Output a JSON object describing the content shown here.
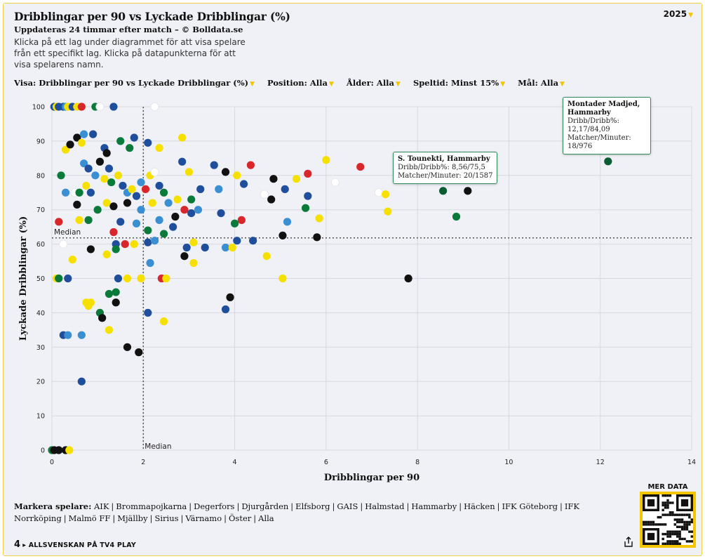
{
  "header": {
    "title": "Dribblingar per 90 vs Lyckade Dribblingar (%)",
    "subtitle": "Uppdateras 24 timmar efter match – © Bolldata.se",
    "instructions": "Klicka på ett lag under diagrammet för att visa spelare från ett specifikt lag. Klicka på datapunkterna för att visa spelarens namn.",
    "year": "2025"
  },
  "filters": [
    {
      "label": "Visa:",
      "value": "Dribblingar per 90 vs Lyckade Dribblingar (%)"
    },
    {
      "label": "Position:",
      "value": "Alla"
    },
    {
      "label": "Ålder:",
      "value": "Alla"
    },
    {
      "label": "Speltid:",
      "value": "Minst 15%"
    },
    {
      "label": "Mål:",
      "value": "Alla"
    }
  ],
  "colors": {
    "black": "#111111",
    "dark_blue": "#1f4f9c",
    "light_blue": "#3a8fd2",
    "yellow": "#f5e000",
    "gold": "#f2c500",
    "green": "#0a7a3a",
    "dark_green": "#0a5c32",
    "red": "#d9262b",
    "white": "#ffffff",
    "accent": "#f2c500"
  },
  "chart_data": {
    "type": "scatter",
    "xlabel": "Dribblingar per 90",
    "ylabel": "Lyckade Dribblingar (%)",
    "xlim": [
      0,
      14
    ],
    "ylim": [
      0,
      100
    ],
    "xticks": [
      0,
      2,
      4,
      6,
      8,
      10,
      12,
      14
    ],
    "yticks": [
      0,
      10,
      20,
      30,
      40,
      50,
      60,
      70,
      80,
      90,
      100
    ],
    "grid": true,
    "median_x": 2.0,
    "median_y": 61.8,
    "median_label_x": "Median",
    "median_label_y": "Median",
    "points": [
      {
        "x": 0.05,
        "y": 100,
        "c": "dark_blue"
      },
      {
        "x": 0.1,
        "y": 100,
        "c": "yellow"
      },
      {
        "x": 0.15,
        "y": 100,
        "c": "dark_blue"
      },
      {
        "x": 0.25,
        "y": 100,
        "c": "dark_blue"
      },
      {
        "x": 0.3,
        "y": 100,
        "c": "light_blue"
      },
      {
        "x": 0.35,
        "y": 100,
        "c": "yellow"
      },
      {
        "x": 0.45,
        "y": 100,
        "c": "dark_blue"
      },
      {
        "x": 0.55,
        "y": 100,
        "c": "yellow"
      },
      {
        "x": 0.65,
        "y": 100,
        "c": "red"
      },
      {
        "x": 0.95,
        "y": 100,
        "c": "green"
      },
      {
        "x": 1.05,
        "y": 100,
        "c": "white"
      },
      {
        "x": 1.35,
        "y": 100,
        "c": "dark_blue"
      },
      {
        "x": 2.25,
        "y": 100,
        "c": "white"
      },
      {
        "x": 0.2,
        "y": 80,
        "c": "green"
      },
      {
        "x": 0.3,
        "y": 87.5,
        "c": "yellow"
      },
      {
        "x": 0.4,
        "y": 89,
        "c": "black"
      },
      {
        "x": 0.55,
        "y": 91,
        "c": "black"
      },
      {
        "x": 0.65,
        "y": 89.5,
        "c": "yellow"
      },
      {
        "x": 0.7,
        "y": 92,
        "c": "light_blue"
      },
      {
        "x": 0.9,
        "y": 92,
        "c": "dark_blue"
      },
      {
        "x": 1.15,
        "y": 88,
        "c": "dark_blue"
      },
      {
        "x": 1.2,
        "y": 86.5,
        "c": "black"
      },
      {
        "x": 1.5,
        "y": 90,
        "c": "green"
      },
      {
        "x": 1.8,
        "y": 91,
        "c": "dark_blue"
      },
      {
        "x": 2.1,
        "y": 89.5,
        "c": "dark_blue"
      },
      {
        "x": 2.35,
        "y": 88,
        "c": "yellow"
      },
      {
        "x": 2.85,
        "y": 91,
        "c": "yellow"
      },
      {
        "x": 1.7,
        "y": 88,
        "c": "green"
      },
      {
        "x": 0.3,
        "y": 75,
        "c": "light_blue"
      },
      {
        "x": 0.5,
        "y": 75,
        "c": "white"
      },
      {
        "x": 0.55,
        "y": 71.5,
        "c": "black"
      },
      {
        "x": 0.6,
        "y": 75,
        "c": "green"
      },
      {
        "x": 0.75,
        "y": 77,
        "c": "yellow"
      },
      {
        "x": 0.85,
        "y": 75,
        "c": "dark_blue"
      },
      {
        "x": 0.7,
        "y": 83.5,
        "c": "light_blue"
      },
      {
        "x": 0.8,
        "y": 82,
        "c": "dark_blue"
      },
      {
        "x": 0.95,
        "y": 80,
        "c": "light_blue"
      },
      {
        "x": 1.05,
        "y": 84,
        "c": "black"
      },
      {
        "x": 1.15,
        "y": 79,
        "c": "yellow"
      },
      {
        "x": 1.25,
        "y": 82,
        "c": "dark_blue"
      },
      {
        "x": 1.3,
        "y": 78,
        "c": "green"
      },
      {
        "x": 1.45,
        "y": 80,
        "c": "yellow"
      },
      {
        "x": 1.55,
        "y": 77,
        "c": "dark_blue"
      },
      {
        "x": 1.65,
        "y": 75,
        "c": "light_blue"
      },
      {
        "x": 1.75,
        "y": 76,
        "c": "yellow"
      },
      {
        "x": 1.85,
        "y": 74,
        "c": "dark_blue"
      },
      {
        "x": 1.95,
        "y": 78,
        "c": "light_blue"
      },
      {
        "x": 2.05,
        "y": 76,
        "c": "red"
      },
      {
        "x": 2.15,
        "y": 80,
        "c": "yellow"
      },
      {
        "x": 2.25,
        "y": 81,
        "c": "white"
      },
      {
        "x": 2.35,
        "y": 77,
        "c": "dark_blue"
      },
      {
        "x": 2.45,
        "y": 75,
        "c": "green"
      },
      {
        "x": 2.55,
        "y": 72,
        "c": "light_blue"
      },
      {
        "x": 2.75,
        "y": 73,
        "c": "yellow"
      },
      {
        "x": 2.85,
        "y": 84,
        "c": "dark_blue"
      },
      {
        "x": 3.0,
        "y": 81,
        "c": "yellow"
      },
      {
        "x": 3.05,
        "y": 73,
        "c": "green"
      },
      {
        "x": 3.25,
        "y": 76,
        "c": "dark_blue"
      },
      {
        "x": 3.55,
        "y": 83,
        "c": "dark_blue"
      },
      {
        "x": 3.8,
        "y": 81,
        "c": "black"
      },
      {
        "x": 3.65,
        "y": 76,
        "c": "light_blue"
      },
      {
        "x": 4.05,
        "y": 80,
        "c": "yellow"
      },
      {
        "x": 4.2,
        "y": 77.5,
        "c": "dark_blue"
      },
      {
        "x": 4.35,
        "y": 83,
        "c": "red"
      },
      {
        "x": 4.65,
        "y": 74.5,
        "c": "white"
      },
      {
        "x": 4.8,
        "y": 73,
        "c": "black"
      },
      {
        "x": 4.85,
        "y": 79,
        "c": "black"
      },
      {
        "x": 5.1,
        "y": 76,
        "c": "dark_blue"
      },
      {
        "x": 5.35,
        "y": 79,
        "c": "yellow"
      },
      {
        "x": 5.6,
        "y": 80.5,
        "c": "red"
      },
      {
        "x": 5.6,
        "y": 74,
        "c": "dark_blue"
      },
      {
        "x": 5.55,
        "y": 70.5,
        "c": "green"
      },
      {
        "x": 5.85,
        "y": 67.5,
        "c": "yellow"
      },
      {
        "x": 6.0,
        "y": 84.5,
        "c": "yellow"
      },
      {
        "x": 6.2,
        "y": 78,
        "c": "white"
      },
      {
        "x": 6.75,
        "y": 82.5,
        "c": "red"
      },
      {
        "x": 7.15,
        "y": 75,
        "c": "white"
      },
      {
        "x": 7.3,
        "y": 74.5,
        "c": "yellow"
      },
      {
        "x": 7.35,
        "y": 69.5,
        "c": "yellow"
      },
      {
        "x": 8.56,
        "y": 75.5,
        "c": "dark_green"
      },
      {
        "x": 8.85,
        "y": 68,
        "c": "green"
      },
      {
        "x": 9.1,
        "y": 75.5,
        "c": "black"
      },
      {
        "x": 12.17,
        "y": 84.09,
        "c": "dark_green"
      },
      {
        "x": 0.15,
        "y": 66.5,
        "c": "red"
      },
      {
        "x": 0.6,
        "y": 67,
        "c": "yellow"
      },
      {
        "x": 0.8,
        "y": 67,
        "c": "green"
      },
      {
        "x": 1.0,
        "y": 70,
        "c": "green"
      },
      {
        "x": 1.2,
        "y": 72,
        "c": "yellow"
      },
      {
        "x": 1.35,
        "y": 71,
        "c": "black"
      },
      {
        "x": 1.5,
        "y": 66.5,
        "c": "dark_blue"
      },
      {
        "x": 1.65,
        "y": 72,
        "c": "black"
      },
      {
        "x": 1.85,
        "y": 66,
        "c": "light_blue"
      },
      {
        "x": 1.95,
        "y": 70,
        "c": "light_blue"
      },
      {
        "x": 2.1,
        "y": 64,
        "c": "green"
      },
      {
        "x": 2.2,
        "y": 72,
        "c": "yellow"
      },
      {
        "x": 2.35,
        "y": 67,
        "c": "light_blue"
      },
      {
        "x": 2.45,
        "y": 63,
        "c": "green"
      },
      {
        "x": 2.65,
        "y": 65,
        "c": "dark_blue"
      },
      {
        "x": 2.7,
        "y": 68,
        "c": "black"
      },
      {
        "x": 2.9,
        "y": 70,
        "c": "red"
      },
      {
        "x": 3.05,
        "y": 69,
        "c": "dark_blue"
      },
      {
        "x": 3.2,
        "y": 70,
        "c": "light_blue"
      },
      {
        "x": 3.35,
        "y": 59,
        "c": "dark_blue"
      },
      {
        "x": 3.7,
        "y": 69,
        "c": "dark_blue"
      },
      {
        "x": 3.8,
        "y": 59,
        "c": "light_blue"
      },
      {
        "x": 3.95,
        "y": 59,
        "c": "yellow"
      },
      {
        "x": 4.0,
        "y": 66,
        "c": "green"
      },
      {
        "x": 4.15,
        "y": 67,
        "c": "red"
      },
      {
        "x": 4.4,
        "y": 61,
        "c": "dark_blue"
      },
      {
        "x": 4.05,
        "y": 61,
        "c": "dark_blue"
      },
      {
        "x": 5.05,
        "y": 62.5,
        "c": "black"
      },
      {
        "x": 5.15,
        "y": 66.5,
        "c": "light_blue"
      },
      {
        "x": 5.8,
        "y": 62,
        "c": "black"
      },
      {
        "x": 1.35,
        "y": 63.5,
        "c": "red"
      },
      {
        "x": 1.4,
        "y": 60,
        "c": "dark_blue"
      },
      {
        "x": 1.6,
        "y": 60,
        "c": "red"
      },
      {
        "x": 1.8,
        "y": 60,
        "c": "yellow"
      },
      {
        "x": 2.1,
        "y": 60.5,
        "c": "dark_blue"
      },
      {
        "x": 2.25,
        "y": 61,
        "c": "light_blue"
      },
      {
        "x": 2.95,
        "y": 59,
        "c": "dark_blue"
      },
      {
        "x": 3.1,
        "y": 60.5,
        "c": "yellow"
      },
      {
        "x": 2.9,
        "y": 56.5,
        "c": "black"
      },
      {
        "x": 3.1,
        "y": 54.5,
        "c": "yellow"
      },
      {
        "x": 0.25,
        "y": 60,
        "c": "white"
      },
      {
        "x": 0.85,
        "y": 58.5,
        "c": "black"
      },
      {
        "x": 1.2,
        "y": 57,
        "c": "yellow"
      },
      {
        "x": 1.4,
        "y": 58.5,
        "c": "green"
      },
      {
        "x": 2.15,
        "y": 54.5,
        "c": "light_blue"
      },
      {
        "x": 0.45,
        "y": 55.5,
        "c": "yellow"
      },
      {
        "x": 4.7,
        "y": 56.5,
        "c": "yellow"
      },
      {
        "x": 0.1,
        "y": 50,
        "c": "yellow"
      },
      {
        "x": 0.15,
        "y": 50,
        "c": "green"
      },
      {
        "x": 0.35,
        "y": 50,
        "c": "dark_blue"
      },
      {
        "x": 1.45,
        "y": 50,
        "c": "dark_blue"
      },
      {
        "x": 1.65,
        "y": 50,
        "c": "yellow"
      },
      {
        "x": 1.95,
        "y": 50,
        "c": "yellow"
      },
      {
        "x": 2.4,
        "y": 50,
        "c": "red"
      },
      {
        "x": 2.5,
        "y": 50,
        "c": "yellow"
      },
      {
        "x": 5.05,
        "y": 50,
        "c": "yellow"
      },
      {
        "x": 7.8,
        "y": 50,
        "c": "black"
      },
      {
        "x": 1.25,
        "y": 45.5,
        "c": "green"
      },
      {
        "x": 1.4,
        "y": 46,
        "c": "green"
      },
      {
        "x": 3.9,
        "y": 44.5,
        "c": "black"
      },
      {
        "x": 0.75,
        "y": 43,
        "c": "yellow"
      },
      {
        "x": 0.85,
        "y": 43,
        "c": "yellow"
      },
      {
        "x": 0.8,
        "y": 42,
        "c": "yellow"
      },
      {
        "x": 1.4,
        "y": 43,
        "c": "black"
      },
      {
        "x": 1.05,
        "y": 40,
        "c": "green"
      },
      {
        "x": 1.1,
        "y": 38.5,
        "c": "black"
      },
      {
        "x": 2.1,
        "y": 40,
        "c": "dark_blue"
      },
      {
        "x": 3.8,
        "y": 41,
        "c": "dark_blue"
      },
      {
        "x": 2.45,
        "y": 37.5,
        "c": "yellow"
      },
      {
        "x": 1.25,
        "y": 35,
        "c": "yellow"
      },
      {
        "x": 0.25,
        "y": 33.5,
        "c": "dark_blue"
      },
      {
        "x": 0.35,
        "y": 33.5,
        "c": "light_blue"
      },
      {
        "x": 0.65,
        "y": 33.5,
        "c": "light_blue"
      },
      {
        "x": 1.65,
        "y": 30,
        "c": "black"
      },
      {
        "x": 1.9,
        "y": 28.5,
        "c": "black"
      },
      {
        "x": 0.65,
        "y": 20,
        "c": "dark_blue"
      },
      {
        "x": 0.0,
        "y": 0,
        "c": "green"
      },
      {
        "x": 0.05,
        "y": 0,
        "c": "black"
      },
      {
        "x": 0.15,
        "y": 0,
        "c": "black"
      },
      {
        "x": 0.3,
        "y": 0,
        "c": "black"
      },
      {
        "x": 0.38,
        "y": 0,
        "c": "yellow"
      }
    ]
  },
  "tooltips": [
    {
      "name": "S. Tounekti, Hammarby",
      "lines": [
        "Dribb/Dribb%: 8,56/75,5",
        "Matcher/Minuter: 20/1587"
      ]
    },
    {
      "name": "Montader Madjed, Hammarby",
      "lines": [
        "Dribb/Dribb%:",
        "12,17/84,09",
        "Matcher/Minuter:",
        "18/976"
      ]
    }
  ],
  "teams_label": "Markera spelare:",
  "teams": [
    "AIK",
    "Brommapojkarna",
    "Degerfors",
    "Djurgården",
    "Elfsborg",
    "GAIS",
    "Halmstad",
    "Hammarby",
    "Häcken",
    "IFK Göteborg",
    "IFK Norrköping",
    "Malmö FF",
    "Mjällby",
    "Sirius",
    "Värnamo",
    "Öster",
    "Alla"
  ],
  "footer": {
    "number": "4",
    "arrow": "▸",
    "text": "ALLSVENSKAN PÅ TV4 PLAY",
    "share_icon": "share-icon"
  },
  "mer_data": "MER DATA"
}
